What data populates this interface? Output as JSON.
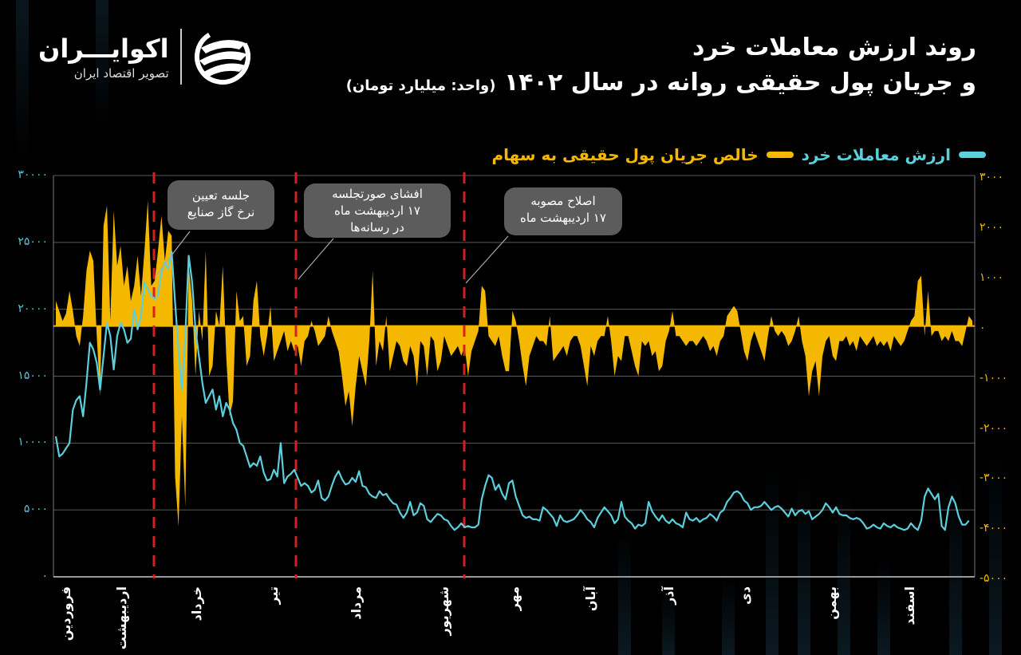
{
  "header": {
    "title_line1": "روند ارزش معاملات خرد",
    "title_line2": "و جریان پول حقیقی روانه در سال ۱۴۰۲",
    "unit": "(واحد: میلیارد تومان)"
  },
  "logo": {
    "name": "اکوایـــران",
    "tagline": "تصویر اقتصاد ایران",
    "icon": "ecoiran-swirl-icon"
  },
  "legend": [
    {
      "label": "ارزش معاملات خرد",
      "color": "#5ccfdc"
    },
    {
      "label": "خالص جریان پول حقیقی به سهام",
      "color": "#f5b800"
    }
  ],
  "annotations": [
    {
      "text_line1": "جلسه تعیین",
      "text_line2": "نرخ گاز صنایع",
      "text_line3": "",
      "x_index": 44
    },
    {
      "text_line1": "افشای صورتجلسه",
      "text_line2": "۱۷ اردیبهشت ماه",
      "text_line3": "در رسانه‌ها",
      "x_index": 83
    },
    {
      "text_line1": "اصلاح مصوبه",
      "text_line2": "۱۷ اردیبهشت ماه",
      "text_line3": "",
      "x_index": 131
    }
  ],
  "colors": {
    "background": "#000000",
    "retail_line": "#5ccfdc",
    "net_flow_area": "#f5b800",
    "event_line": "#d62020",
    "grid": "#6e6e6e",
    "callout_bg": "#5c5c5c"
  },
  "chart_data": {
    "type": "line+area (dual axis)",
    "title": "روند ارزش معاملات خرد و جریان پول حقیقی روانه در سال ۱۴۰۲",
    "unit": "میلیارد تومان",
    "x_axis": {
      "label": "",
      "months": [
        "فروردین",
        "اردیبهشت",
        "خرداد",
        "تیر",
        "مرداد",
        "شهریور",
        "مهر",
        "آبان",
        "آذر",
        "دی",
        "بهمن",
        "اسفند"
      ],
      "month_label_x": [
        82,
        152,
        246,
        342,
        446,
        556,
        644,
        740,
        838,
        934,
        1042,
        1140
      ]
    },
    "y_left": {
      "label": "ارزش معاملات خرد",
      "range": [
        0,
        30000
      ],
      "ticks": [
        0,
        5000,
        10000,
        15000,
        20000,
        25000,
        30000
      ],
      "tick_labels": [
        "۰",
        "۵۰۰۰",
        "۱۰۰۰۰",
        "۱۵۰۰۰",
        "۲۰۰۰۰",
        "۲۵۰۰۰",
        "۳۰۰۰۰"
      ]
    },
    "y_right": {
      "label": "خالص جریان پول حقیقی به سهام",
      "range": [
        -5000,
        3000
      ],
      "ticks": [
        -5000,
        -4000,
        -3000,
        -2000,
        -1000,
        0,
        1000,
        2000,
        3000
      ],
      "tick_labels": [
        "-۵۰۰۰",
        "-۴۰۰۰",
        "-۳۰۰۰",
        "-۲۰۰۰",
        "-۱۰۰۰",
        "۰",
        "۱۰۰۰",
        "۲۰۰۰",
        "۳۰۰۰"
      ]
    },
    "event_lines_x": [
      193,
      371,
      582
    ],
    "series": [
      {
        "name": "ارزش معاملات خرد",
        "axis": "left",
        "color": "#5ccfdc",
        "values": [
          10500,
          9000,
          9200,
          9600,
          10000,
          12500,
          13200,
          13500,
          12000,
          14500,
          17500,
          17000,
          16000,
          14000,
          16500,
          19000,
          18000,
          15500,
          18000,
          19000,
          18500,
          17500,
          17800,
          20000,
          18500,
          19500,
          22000,
          21500,
          21000,
          20800,
          21000,
          22800,
          23500,
          23000,
          24300,
          20500,
          17000,
          14000,
          18000,
          24000,
          22000,
          18500,
          16500,
          14500,
          13000,
          13500,
          14000,
          12500,
          13500,
          12000,
          13000,
          12500,
          11500,
          11000,
          10000,
          9800,
          9000,
          8200,
          8500,
          8300,
          9000,
          7800,
          7200,
          7300,
          8000,
          7500,
          10000,
          7000,
          7500,
          7700,
          8000,
          7400,
          6800,
          7000,
          6800,
          6300,
          6500,
          7200,
          5900,
          5700,
          6000,
          6800,
          7500,
          7900,
          7300,
          6900,
          7000,
          7400,
          7100,
          7900,
          6800,
          6700,
          6200,
          6000,
          5900,
          6400,
          6100,
          6200,
          5800,
          5500,
          5400,
          4800,
          4400,
          4800,
          5600,
          4600,
          4800,
          5500,
          5300,
          4300,
          4100,
          4400,
          4700,
          4600,
          4300,
          4200,
          3800,
          3500,
          3700,
          4000,
          3700,
          3800,
          3700,
          3700,
          3900,
          5800,
          6800,
          7600,
          7400,
          6500,
          6900,
          6200,
          5800,
          7000,
          7200,
          6000,
          5300,
          4600,
          4400,
          4500,
          4300,
          4300,
          4200,
          5200,
          5000,
          4700,
          4400,
          3800,
          4600,
          4200,
          4100,
          4200,
          4300,
          4600,
          5000,
          4700,
          4300,
          4100,
          3700,
          4400,
          4800,
          5200,
          4900,
          4600,
          4000,
          4300,
          5600,
          4500,
          4200,
          4000,
          3600,
          3900,
          3800,
          4000,
          5600,
          4900,
          4500,
          4200,
          4600,
          4200,
          4000,
          4300,
          4000,
          3900,
          3700,
          4800,
          4300,
          4200,
          4400,
          4100,
          4300,
          4400,
          4700,
          4500,
          4200,
          4800,
          5000,
          5600,
          5900,
          6300,
          6400,
          6200,
          5700,
          5500,
          5000,
          5200,
          5200,
          5300,
          5600,
          5300,
          5000,
          5200,
          5300,
          5100,
          4800,
          4500,
          5100,
          4600,
          4900,
          5000,
          4700,
          4900,
          4300,
          4500,
          4700,
          5000,
          5500,
          5200,
          4800,
          5200,
          4700,
          4600,
          4600,
          4400,
          4300,
          4400,
          4300,
          4000,
          3600,
          3700,
          3900,
          3700,
          3600,
          4000,
          3800,
          3700,
          3900,
          3700,
          3600,
          3500,
          3600,
          4000,
          3700,
          3500,
          4200,
          6000,
          6600,
          6200,
          5800,
          6200,
          3800,
          3500,
          5200,
          6000,
          5500,
          4500,
          3900,
          3900,
          4200
        ]
      },
      {
        "name": "خالص جریان پول حقیقی به سهام",
        "axis": "right",
        "color": "#f5b800",
        "values": [
          500,
          300,
          100,
          250,
          700,
          300,
          -200,
          -400,
          200,
          1100,
          1500,
          1300,
          -200,
          -1400,
          2000,
          2400,
          100,
          2300,
          1200,
          1600,
          800,
          1200,
          500,
          800,
          1400,
          600,
          1500,
          2500,
          800,
          900,
          1500,
          2200,
          1300,
          1900,
          1800,
          -3000,
          -4000,
          -1800,
          -3600,
          1200,
          500,
          -1000,
          300,
          -300,
          1500,
          -1000,
          -800,
          300,
          0,
          1200,
          -600,
          -1800,
          -1500,
          700,
          100,
          200,
          -800,
          -600,
          500,
          900,
          -200,
          -600,
          -200,
          400,
          -700,
          -500,
          -300,
          -100,
          -500,
          -300,
          -500,
          -400,
          -800,
          -300,
          -200,
          100,
          -100,
          -400,
          -300,
          -200,
          200,
          -100,
          -300,
          -500,
          -1000,
          -1600,
          -1300,
          -2000,
          -1200,
          -600,
          -900,
          -1200,
          -300,
          1100,
          -800,
          -300,
          -500,
          200,
          -900,
          -600,
          -300,
          -400,
          -700,
          -800,
          -400,
          -600,
          -1200,
          -300,
          -400,
          -1000,
          -200,
          -300,
          -900,
          -700,
          -200,
          -400,
          -600,
          -500,
          -400,
          -600,
          -400,
          -1000,
          -500,
          -300,
          -100,
          800,
          700,
          -200,
          -300,
          -400,
          -200,
          -600,
          -900,
          -900,
          300,
          100,
          -300,
          -800,
          -1200,
          -600,
          -400,
          -200,
          -300,
          -300,
          -400,
          200,
          -700,
          -600,
          -500,
          -400,
          -600,
          -300,
          -200,
          -200,
          -400,
          -800,
          -1200,
          -400,
          -600,
          -300,
          -200,
          -200,
          200,
          -300,
          -1000,
          -600,
          -700,
          -200,
          -200,
          -500,
          -800,
          -1000,
          -300,
          -400,
          -300,
          -600,
          -500,
          -900,
          -800,
          -300,
          -100,
          300,
          -200,
          -200,
          -300,
          -400,
          -300,
          -300,
          -400,
          -300,
          -200,
          -300,
          -500,
          -400,
          -600,
          -300,
          -200,
          200,
          300,
          400,
          300,
          -100,
          -500,
          -700,
          -300,
          -100,
          -300,
          -500,
          -700,
          -200,
          200,
          -100,
          -200,
          -100,
          -200,
          -400,
          -300,
          -100,
          200,
          -300,
          -600,
          -1400,
          -900,
          -700,
          -1400,
          -600,
          -300,
          -200,
          -600,
          -700,
          -300,
          -300,
          -200,
          -400,
          -300,
          -500,
          -200,
          -300,
          -400,
          -300,
          -200,
          -400,
          -300,
          -400,
          -300,
          -500,
          -200,
          -300,
          -400,
          -300,
          -100,
          100,
          200,
          900,
          1000,
          -200,
          700,
          -200,
          -100,
          -100,
          -300,
          -200,
          -300,
          -100,
          -300,
          -300,
          -400,
          -100,
          200,
          100
        ]
      }
    ]
  }
}
